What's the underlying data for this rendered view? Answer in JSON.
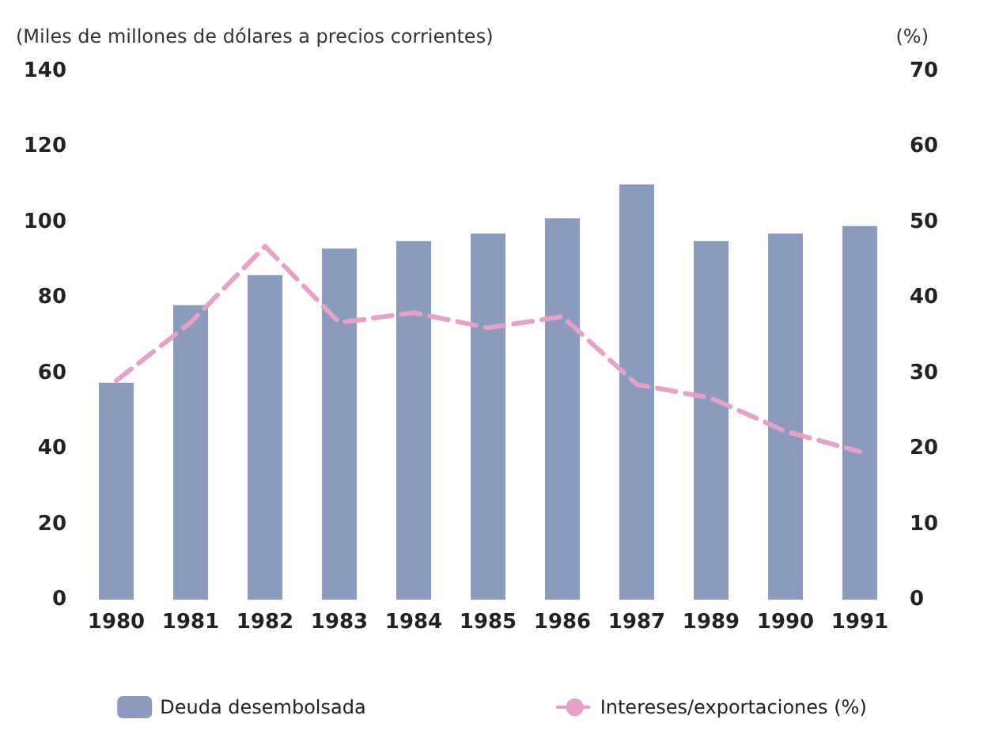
{
  "chart_data": {
    "type": "bar",
    "ylabel": "(Miles de millones de dólares a precios corrientes)",
    "y2label": "(%)",
    "categories": [
      "1980",
      "1981",
      "1982",
      "1983",
      "1984",
      "1985",
      "1986",
      "1987",
      "1989",
      "1990",
      "1991"
    ],
    "series": [
      {
        "name": "Deuda desembolsada",
        "color": "#8a9bbd",
        "values": [
          57.5,
          78,
          86,
          93,
          95,
          97,
          101,
          110,
          95,
          97,
          99
        ]
      },
      {
        "name": "Intereses/exportaciones (%)",
        "type": "line",
        "axis": "y2",
        "color": "#e8a0c8",
        "line_style": "dashed",
        "marker": "none",
        "values": [
          29,
          36.7,
          46.8,
          36.7,
          38,
          36,
          37.5,
          28.5,
          26.7,
          22.3,
          19.6
        ]
      }
    ],
    "ylim": [
      0,
      140
    ],
    "yticks": [
      0,
      20,
      40,
      60,
      80,
      100,
      120,
      140
    ],
    "y2lim": [
      0,
      70
    ],
    "y2ticks": [
      0,
      10,
      20,
      30,
      40,
      50,
      60,
      70
    ],
    "grid": false,
    "legend": "bottom"
  }
}
